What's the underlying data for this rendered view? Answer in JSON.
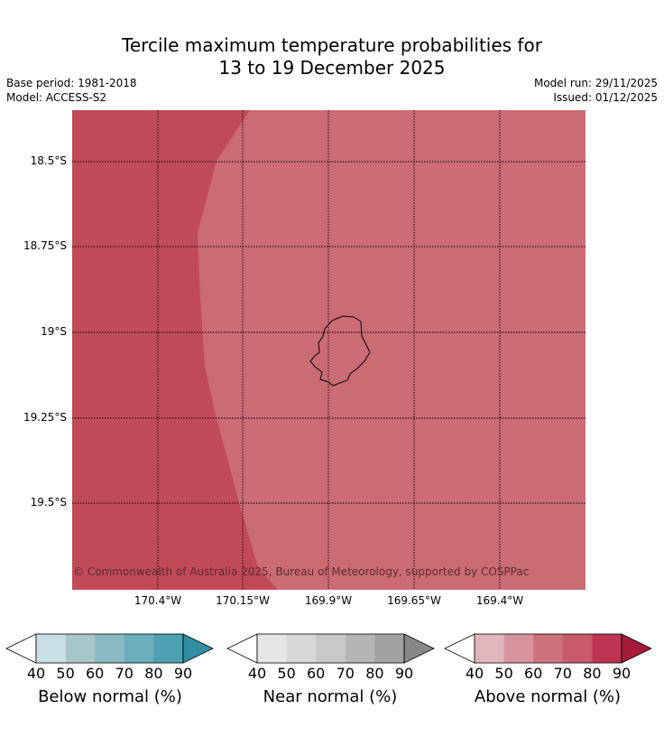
{
  "title": {
    "line1": "Tercile maximum temperature probabilities for",
    "line2": "13 to 19 December 2025"
  },
  "meta": {
    "base_period": "Base period: 1981-2018",
    "model": "Model: ACCESS-S2",
    "model_run": "Model run: 29/11/2025",
    "issued": "Issued: 01/12/2025"
  },
  "map": {
    "lat_ticks": [
      "18.5°S",
      "18.75°S",
      "19°S",
      "19.25°S",
      "19.5°S"
    ],
    "lon_ticks": [
      "170.4°W",
      "170.15°W",
      "169.9°W",
      "169.65°W",
      "169.4°W"
    ],
    "copyright": "© Commonwealth of Australia 2025, Bureau of Meteorology, supported by COSPPac",
    "colors": {
      "above_80_90": "#c14a58",
      "above_70_80": "#cb6b74"
    }
  },
  "colorbars": [
    {
      "label": "Below normal (%)",
      "ticks": [
        "40",
        "50",
        "60",
        "70",
        "80",
        "90"
      ],
      "colors": [
        "#c9e0e6",
        "#a7c6ca",
        "#8ab8c3",
        "#6aaebc",
        "#4ea1b1",
        "#2f8fa3"
      ]
    },
    {
      "label": "Near normal (%)",
      "ticks": [
        "40",
        "50",
        "60",
        "70",
        "80",
        "90"
      ],
      "colors": [
        "#e6e6e6",
        "#d8d8d8",
        "#c8c8c8",
        "#b5b5b5",
        "#a2a2a2",
        "#888888"
      ]
    },
    {
      "label": "Above normal (%)",
      "ticks": [
        "40",
        "50",
        "60",
        "70",
        "80",
        "90"
      ],
      "colors": [
        "#e0b6bc",
        "#d6959d",
        "#cd727b",
        "#c85a6a",
        "#bd3550",
        "#a61a3a"
      ]
    }
  ]
}
